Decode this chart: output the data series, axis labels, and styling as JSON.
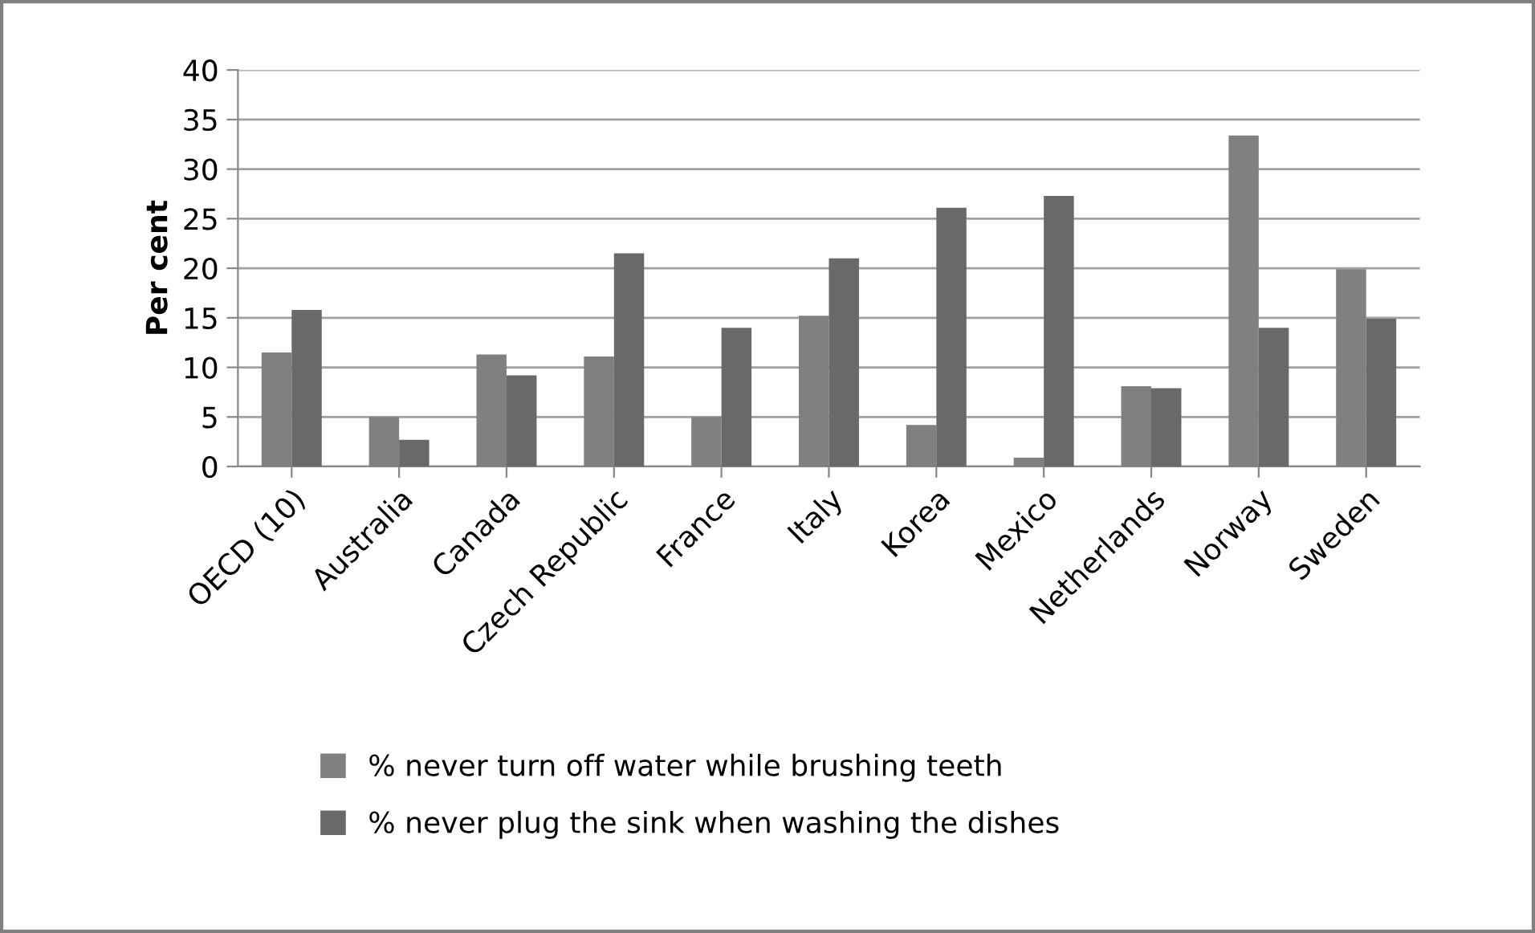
{
  "chart_data": {
    "type": "bar",
    "ylabel": "Per cent",
    "categories": [
      "OECD (10)",
      "Australia",
      "Canada",
      "Czech Republic",
      "France",
      "Italy",
      "Korea",
      "Mexico",
      "Netherlands",
      "Norway",
      "Sweden"
    ],
    "series": [
      {
        "name": "% never turn off water while brushing teeth",
        "color": "#808080",
        "values": [
          11.5,
          5.0,
          11.3,
          11.1,
          5.0,
          15.2,
          4.2,
          0.9,
          8.1,
          33.4,
          19.9
        ]
      },
      {
        "name": "% never plug the sink when washing the dishes",
        "color": "#696969",
        "values": [
          15.8,
          2.7,
          9.2,
          21.5,
          14.0,
          21.0,
          26.1,
          27.3,
          7.9,
          14.0,
          14.9
        ]
      }
    ],
    "ylim": [
      0,
      40
    ],
    "yticks": [
      0,
      5,
      10,
      15,
      20,
      25,
      30,
      35,
      40
    ],
    "grid": "y",
    "legend": "bottom"
  }
}
